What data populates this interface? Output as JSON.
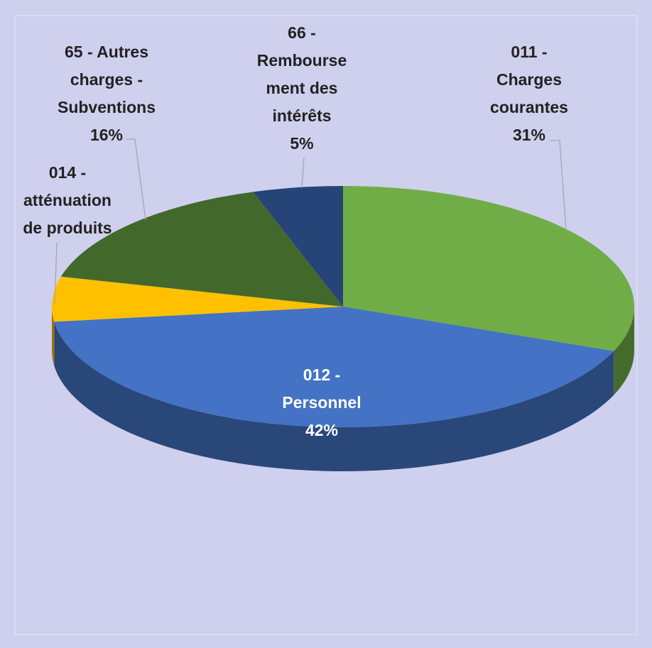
{
  "chart_data": {
    "type": "pie3d",
    "categories": [
      "011 -\nCharges\ncourantes",
      "012 -\nPersonnel",
      "014 -\natténuation\nde produits",
      "65 - Autres\ncharges -\nSubventions",
      "66 -\nRembourse\nment des\nintérêts"
    ],
    "values": [
      31,
      42,
      6,
      16,
      5
    ],
    "value_labels": [
      "31%",
      "42%",
      null,
      "16%",
      "5%"
    ],
    "colors": [
      "#70ad47",
      "#4472c4",
      "#ffc000",
      "#43682b",
      "#264478"
    ]
  }
}
